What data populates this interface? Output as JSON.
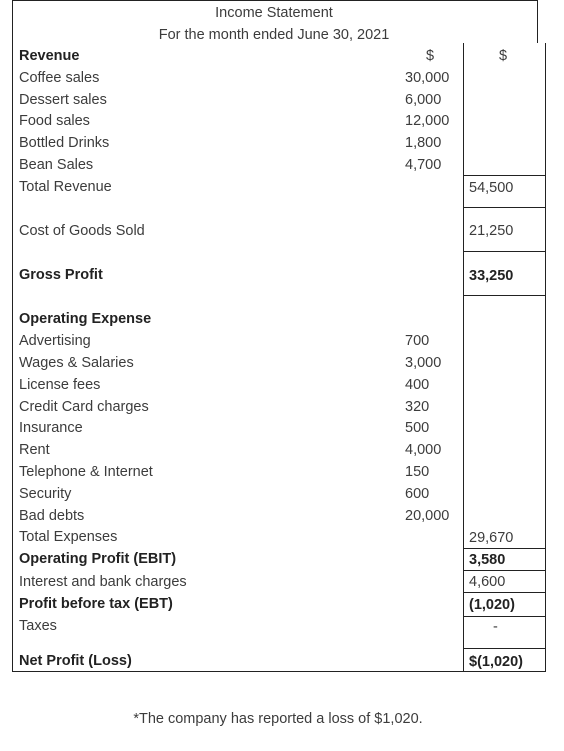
{
  "header": {
    "title": "Income Statement",
    "subtitle": "For the month ended June 30, 2021"
  },
  "currency": {
    "col1": "$",
    "col2": "$"
  },
  "revenue": {
    "heading": "Revenue",
    "items": [
      {
        "label": "Coffee sales",
        "amount": "30,000"
      },
      {
        "label": "Dessert sales",
        "amount": "6,000"
      },
      {
        "label": "Food sales",
        "amount": "12,000"
      },
      {
        "label": "Bottled Drinks",
        "amount": "1,800"
      },
      {
        "label": "Bean Sales",
        "amount": "4,700"
      }
    ],
    "total_label": "Total Revenue",
    "total_value": "54,500"
  },
  "cogs": {
    "label": "Cost of Goods Sold",
    "value": "21,250"
  },
  "gross_profit": {
    "label": "Gross Profit",
    "value": "33,250"
  },
  "operating_expense": {
    "heading": "Operating Expense",
    "items": [
      {
        "label": "Advertising",
        "amount": "700"
      },
      {
        "label": "Wages & Salaries",
        "amount": "3,000"
      },
      {
        "label": "License fees",
        "amount": "400"
      },
      {
        "label": "Credit Card charges",
        "amount": "320"
      },
      {
        "label": "Insurance",
        "amount": "500"
      },
      {
        "label": "Rent",
        "amount": "4,000"
      },
      {
        "label": "Telephone & Internet",
        "amount": "150"
      },
      {
        "label": "Security",
        "amount": "600"
      },
      {
        "label": "Bad debts",
        "amount": "20,000"
      }
    ],
    "total_label": "Total Expenses",
    "total_value": "29,670"
  },
  "ebit": {
    "label": "Operating Profit (EBIT)",
    "value": "3,580"
  },
  "interest": {
    "label": "Interest and bank charges",
    "value": "4,600"
  },
  "ebt": {
    "label": "Profit before tax (EBT)",
    "value": "(1,020)"
  },
  "taxes": {
    "label": "Taxes",
    "value": "-"
  },
  "net_profit": {
    "label": "Net Profit (Loss)",
    "value": "$(1,020)"
  },
  "footnote": "*The company has reported a loss of $1,020."
}
